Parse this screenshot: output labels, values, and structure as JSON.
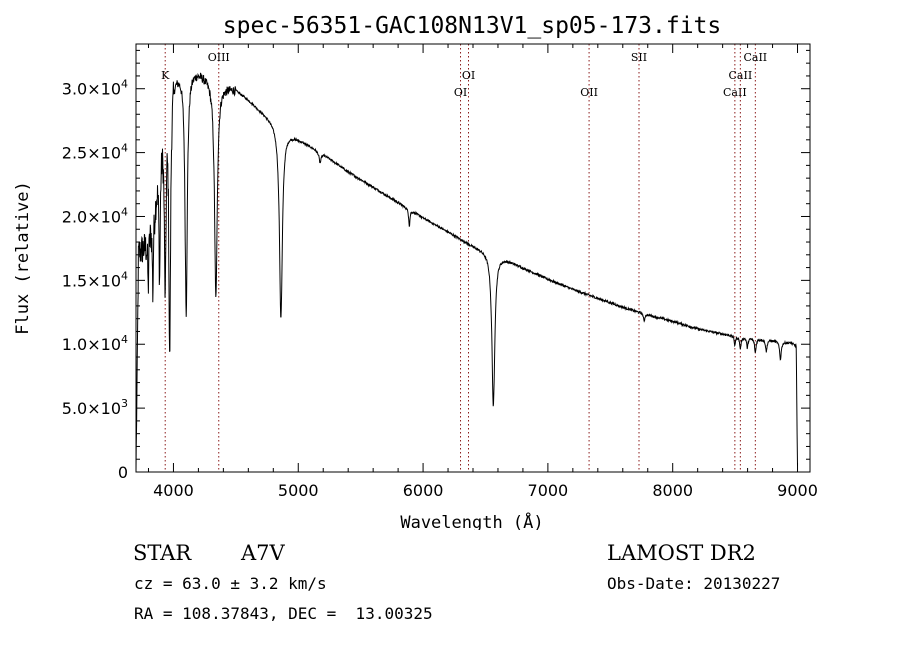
{
  "title": "spec-56351-GAC108N13V1_sp05-173.fits",
  "chart_data": {
    "type": "line",
    "xlabel": "Wavelength (Å)",
    "ylabel": "Flux (relative)",
    "xlim": [
      3700,
      9100
    ],
    "ylim": [
      0,
      33500
    ],
    "xticks": [
      4000,
      5000,
      6000,
      7000,
      8000,
      9000
    ],
    "xtick_labels": [
      "4000",
      "5000",
      "6000",
      "7000",
      "8000",
      "9000"
    ],
    "yticks": [
      0,
      5000,
      10000,
      15000,
      20000,
      25000,
      30000
    ],
    "ytick_labels": [
      {
        "mant": "0",
        "exp": ""
      },
      {
        "mant": "5.0×10",
        "exp": "3"
      },
      {
        "mant": "1.0×10",
        "exp": "4"
      },
      {
        "mant": "1.5×10",
        "exp": "4"
      },
      {
        "mant": "2.0×10",
        "exp": "4"
      },
      {
        "mant": "2.5×10",
        "exp": "4"
      },
      {
        "mant": "3.0×10",
        "exp": "4"
      }
    ],
    "grid": false,
    "continuum": {
      "x": [
        3700,
        3790,
        3850,
        3900,
        3950,
        4000,
        4100,
        4200,
        4300,
        4400,
        4500,
        4600,
        4700,
        4800,
        4900,
        5000,
        5200,
        5400,
        5600,
        5800,
        6000,
        6200,
        6400,
        6600,
        6800,
        7000,
        7200,
        7400,
        7600,
        7800,
        8000,
        8200,
        8400,
        8600,
        8800,
        8950,
        9000
      ],
      "y": [
        17000,
        18000,
        21000,
        26000,
        30000,
        31200,
        31600,
        31400,
        30800,
        30300,
        30000,
        29200,
        28300,
        27500,
        26700,
        26100,
        24900,
        23500,
        22300,
        21100,
        19900,
        18800,
        17700,
        17000,
        16000,
        15100,
        14300,
        13600,
        12900,
        12300,
        11800,
        11200,
        10800,
        10500,
        10300,
        10100,
        9800
      ]
    },
    "absorption_lines": [
      {
        "x": 3798,
        "depth": 4000,
        "width": 4
      },
      {
        "x": 3835,
        "depth": 6000,
        "width": 5
      },
      {
        "x": 3889,
        "depth": 9000,
        "width": 6
      },
      {
        "x": 3934,
        "depth": 14000,
        "width": 8
      },
      {
        "x": 3970,
        "depth": 21000,
        "width": 8
      },
      {
        "x": 4102,
        "depth": 19000,
        "width": 11
      },
      {
        "x": 4340,
        "depth": 17000,
        "width": 13
      },
      {
        "x": 4861,
        "depth": 15000,
        "width": 14
      },
      {
        "x": 5175,
        "depth": 800,
        "width": 10
      },
      {
        "x": 5890,
        "depth": 1300,
        "width": 6
      },
      {
        "x": 6563,
        "depth": 12000,
        "width": 14
      },
      {
        "x": 7771,
        "depth": 600,
        "width": 6
      },
      {
        "x": 8498,
        "depth": 700,
        "width": 6
      },
      {
        "x": 8542,
        "depth": 900,
        "width": 7
      },
      {
        "x": 8598,
        "depth": 800,
        "width": 6
      },
      {
        "x": 8662,
        "depth": 1100,
        "width": 7
      },
      {
        "x": 8750,
        "depth": 900,
        "width": 7
      },
      {
        "x": 8863,
        "depth": 1400,
        "width": 8
      }
    ],
    "line_markers": [
      {
        "x": 3934,
        "label": "K",
        "tier": 1
      },
      {
        "x": 4363,
        "label": "OIII",
        "tier": 0
      },
      {
        "x": 6300,
        "label": "OI",
        "tier": 2
      },
      {
        "x": 6364,
        "label": "OI",
        "tier": 1
      },
      {
        "x": 7330,
        "label": "OII",
        "tier": 2
      },
      {
        "x": 7730,
        "label": "SII",
        "tier": 0
      },
      {
        "x": 8498,
        "label": "CaII",
        "tier": 2
      },
      {
        "x": 8542,
        "label": "CaII",
        "tier": 1
      },
      {
        "x": 8662,
        "label": "CaII",
        "tier": 0
      }
    ]
  },
  "info": {
    "object_type": "STAR",
    "spectral_class": "A7V",
    "survey": "LAMOST DR2",
    "redshift": "cz = 63.0 ± 3.2 km/s",
    "obs_date": "Obs-Date: 20130227",
    "coordinates": "RA = 108.37843, DEC =  13.00325"
  },
  "colors": {
    "spectrum": "#000000",
    "line_markers": "#8b1a1a"
  }
}
